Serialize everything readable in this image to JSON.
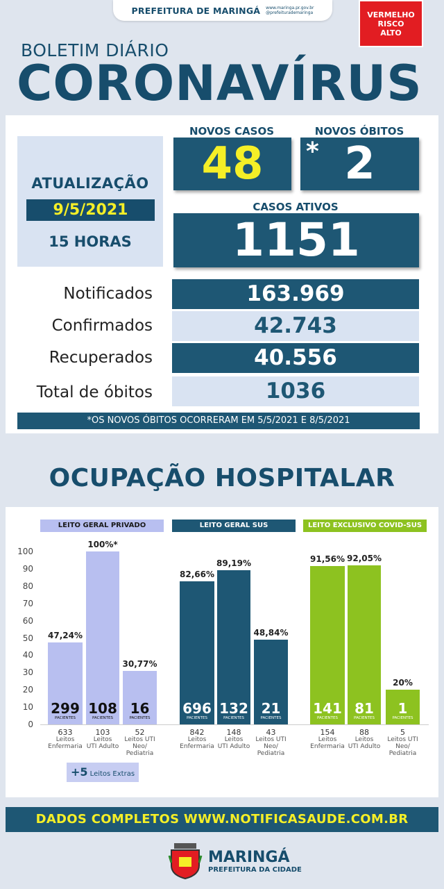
{
  "header": {
    "prefeitura": "PREFEITURA DE MARINGÁ",
    "site": "www.maringa.pr.gov.br",
    "social": "@prefeiturademaringa",
    "risk": [
      "VERMELHO",
      "RISCO",
      "ALTO"
    ]
  },
  "title": {
    "boletim": "BOLETIM DIÁRIO",
    "main": "CORONAVÍRUS"
  },
  "update": {
    "title": "ATUALIZAÇÃO",
    "date": "9/5/2021",
    "hour": "15 HORAS"
  },
  "kpi": {
    "novos_casos_label": "NOVOS CASOS",
    "novos_casos": "48",
    "novos_obitos_label": "NOVOS ÓBITOS",
    "novos_obitos_star": "*",
    "novos_obitos": "2",
    "casos_ativos_label": "CASOS ATIVOS",
    "casos_ativos": "1151"
  },
  "stats": [
    {
      "label": "Notificados",
      "value": "163.969"
    },
    {
      "label": "Confirmados",
      "value": "42.743"
    },
    {
      "label": "Recuperados",
      "value": "40.556"
    },
    {
      "label": "Total de óbitos",
      "value": "1036"
    }
  ],
  "note": "*OS NOVOS ÓBITOS OCORRERAM EM 5/5/2021 E 8/5/2021",
  "ocupacao_title": "OCUPAÇÃO HOSPITALAR",
  "extras": {
    "num": "+5",
    "label": "Leitos Extras"
  },
  "footer": {
    "dados": "DADOS COMPLETOS  WWW.NOTIFICASAUDE.COM.BR",
    "city": "MARINGÁ",
    "city_sub": "PREFEITURA DA CIDADE"
  },
  "colors": {
    "navy": "#1e5774",
    "lavender": "#b8bff0",
    "green": "#8dc220",
    "yellow": "#f5ef27",
    "red": "#e21d22"
  },
  "chart_data": {
    "type": "bar",
    "ylim": [
      0,
      100
    ],
    "yticks": [
      0,
      10,
      20,
      30,
      40,
      50,
      60,
      70,
      80,
      90,
      100
    ],
    "groups": [
      {
        "name": "LEITO GERAL PRIVADO",
        "color": "#b8bff0",
        "header_bg": "#b8bff0",
        "header_fg": "#1a1a1a",
        "bars": [
          {
            "pct": 47.24,
            "pct_label": "47,24%",
            "pacientes": "299",
            "leitos": "633",
            "desc": [
              "Leitos",
              "Enfermaria"
            ]
          },
          {
            "pct": 100,
            "pct_label": "100%*",
            "pacientes": "108",
            "leitos": "103",
            "desc": [
              "Leitos",
              "UTI Adulto"
            ]
          },
          {
            "pct": 30.77,
            "pct_label": "30,77%",
            "pacientes": "16",
            "leitos": "52",
            "desc": [
              "Leitos UTI",
              "Neo/",
              "Pediatria"
            ]
          }
        ]
      },
      {
        "name": "LEITO GERAL SUS",
        "color": "#1e5774",
        "header_bg": "#1e5774",
        "header_fg": "#ffffff",
        "bars": [
          {
            "pct": 82.66,
            "pct_label": "82,66%",
            "pacientes": "696",
            "leitos": "842",
            "desc": [
              "Leitos",
              "Enfermaria"
            ]
          },
          {
            "pct": 89.19,
            "pct_label": "89,19%",
            "pacientes": "132",
            "leitos": "148",
            "desc": [
              "Leitos",
              "UTI Adulto"
            ]
          },
          {
            "pct": 48.84,
            "pct_label": "48,84%",
            "pacientes": "21",
            "leitos": "43",
            "desc": [
              "Leitos UTI",
              "Neo/",
              "Pediatria"
            ]
          }
        ]
      },
      {
        "name": "LEITO EXCLUSIVO COVID-SUS",
        "color": "#8dc220",
        "header_bg": "#8dc220",
        "header_fg": "#ffffff",
        "bars": [
          {
            "pct": 91.56,
            "pct_label": "91,56%",
            "pacientes": "141",
            "leitos": "154",
            "desc": [
              "Leitos",
              "Enfermaria"
            ]
          },
          {
            "pct": 92.05,
            "pct_label": "92,05%",
            "pacientes": "81",
            "leitos": "88",
            "desc": [
              "Leitos",
              "UTI Adulto"
            ]
          },
          {
            "pct": 20,
            "pct_label": "20%",
            "pacientes": "1",
            "leitos": "5",
            "desc": [
              "Leitos UTI",
              "Neo/",
              "Pediatria"
            ]
          }
        ]
      }
    ],
    "pacientes_label": "PACIENTES"
  }
}
